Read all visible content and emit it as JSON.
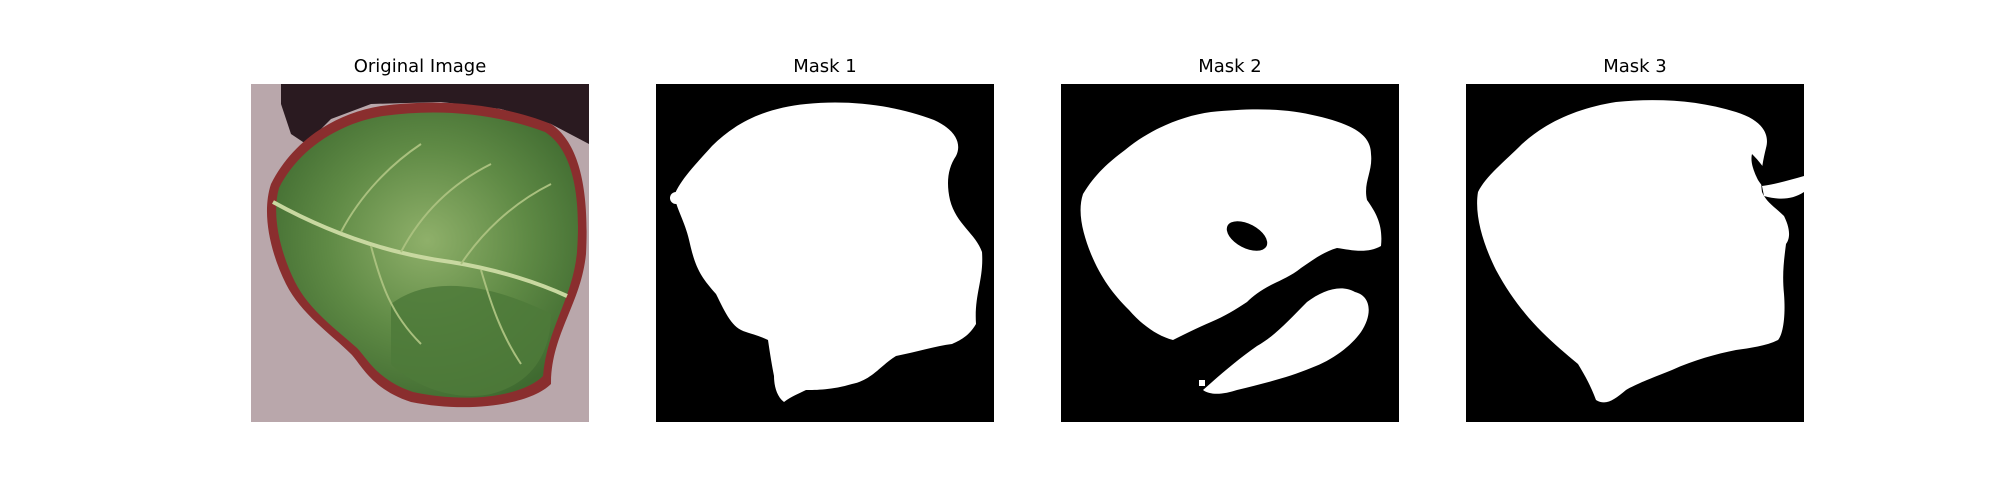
{
  "figure": {
    "panels": [
      {
        "title": "Original Image",
        "kind": "photo"
      },
      {
        "title": "Mask 1",
        "kind": "mask"
      },
      {
        "title": "Mask 2",
        "kind": "mask"
      },
      {
        "title": "Mask 3",
        "kind": "mask"
      }
    ]
  },
  "colors": {
    "background": "#ffffff",
    "mask_background": "#000000",
    "mask_foreground": "#ffffff",
    "ground": "#b9a7ab",
    "leaf_green": "#5f8a45",
    "leaf_dark": "#3f6a30",
    "leaf_light": "#8fb06a",
    "leaf_edge": "#8a2e2e",
    "shadow": "#2a1a20"
  }
}
